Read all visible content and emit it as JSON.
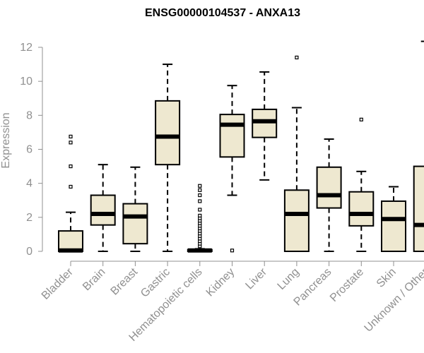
{
  "chart_data": {
    "type": "boxplot",
    "title": "ENSG00000104537 - ANXA13",
    "xlabel": "",
    "ylabel": "Expression",
    "ylim": [
      0,
      12
    ],
    "yticks": [
      0,
      2,
      4,
      6,
      8,
      10,
      12
    ],
    "box_fill": "#EEE8D0",
    "categories": [
      "Bladder",
      "Brain",
      "Breast",
      "Gastric",
      "Hematopoietic cells",
      "Kidney",
      "Liver",
      "Lung",
      "Pancreas",
      "Prostate",
      "Skin",
      "Unknown / Other"
    ],
    "boxes": [
      {
        "min": 0,
        "q1": 0,
        "median": 0.05,
        "q3": 1.2,
        "max": 2.3,
        "outliers": [
          3.8,
          5.0,
          6.4,
          6.75
        ]
      },
      {
        "min": 0,
        "q1": 1.55,
        "median": 2.2,
        "q3": 3.3,
        "max": 5.1,
        "outliers": []
      },
      {
        "min": 0,
        "q1": 0.45,
        "median": 2.05,
        "q3": 2.8,
        "max": 4.95,
        "outliers": []
      },
      {
        "min": 0,
        "q1": 5.1,
        "median": 6.75,
        "q3": 8.85,
        "max": 11.0,
        "outliers": []
      },
      {
        "min": 0,
        "q1": 0,
        "median": 0.05,
        "q3": 0.1,
        "max": 0.15,
        "outliers": [
          0.3,
          0.45,
          0.6,
          0.75,
          0.9,
          1.05,
          1.2,
          1.35,
          1.5,
          1.65,
          1.8,
          1.95,
          2.1,
          2.45,
          2.95,
          3.3,
          3.6,
          3.85
        ]
      },
      {
        "min": 3.3,
        "q1": 5.55,
        "median": 7.45,
        "q3": 8.05,
        "max": 9.75,
        "outliers": [
          0.05
        ]
      },
      {
        "min": 4.2,
        "q1": 6.7,
        "median": 7.65,
        "q3": 8.35,
        "max": 10.55,
        "outliers": []
      },
      {
        "min": 0,
        "q1": 0,
        "median": 2.2,
        "q3": 3.6,
        "max": 8.45,
        "outliers": [
          11.4
        ]
      },
      {
        "min": 0,
        "q1": 2.55,
        "median": 3.3,
        "q3": 4.95,
        "max": 6.6,
        "outliers": []
      },
      {
        "min": 0,
        "q1": 1.5,
        "median": 2.2,
        "q3": 3.5,
        "max": 4.7,
        "outliers": [
          7.75
        ]
      },
      {
        "min": 0,
        "q1": 0,
        "median": 1.9,
        "q3": 2.95,
        "max": 3.8,
        "outliers": []
      },
      {
        "min": 0,
        "q1": 0,
        "median": 1.55,
        "q3": 5.0,
        "max": 12.35,
        "outliers": [
          12.65,
          12.95
        ]
      }
    ]
  }
}
